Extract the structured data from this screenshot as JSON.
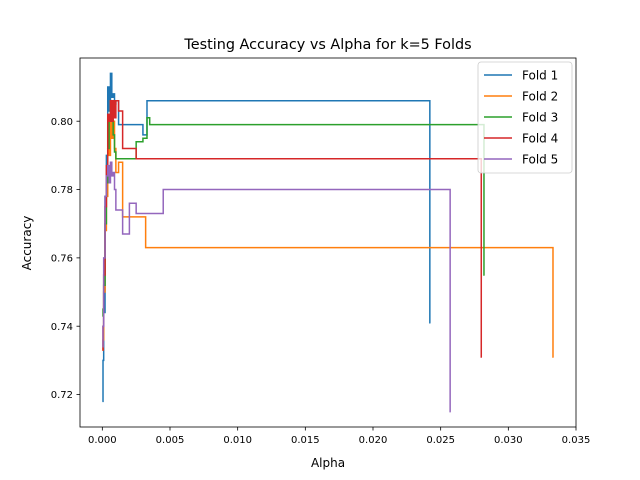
{
  "chart_data": {
    "type": "line",
    "title": "Testing Accuracy vs Alpha for k=5 Folds",
    "xlabel": "Alpha",
    "ylabel": "Accuracy",
    "xlim": [
      -0.00165,
      0.035
    ],
    "ylim": [
      0.7105,
      0.8185
    ],
    "x_ticks": [
      0.0,
      0.005,
      0.01,
      0.015,
      0.02,
      0.025,
      0.03,
      0.035
    ],
    "x_tick_labels": [
      "0.000",
      "0.005",
      "0.010",
      "0.015",
      "0.020",
      "0.025",
      "0.030",
      "0.035"
    ],
    "y_ticks": [
      0.72,
      0.74,
      0.76,
      0.78,
      0.8
    ],
    "y_tick_labels": [
      "0.72",
      "0.74",
      "0.76",
      "0.78",
      "0.80"
    ],
    "grid": false,
    "legend_position": "top-right",
    "drawstyle": "steps-post",
    "series": [
      {
        "name": "Fold 1",
        "color": "#1f77b4",
        "x": [
          0.0,
          5e-05,
          0.0001,
          0.0002,
          0.0003,
          0.0004,
          0.0005,
          0.0006,
          0.0007,
          0.0008,
          0.0009,
          0.001,
          0.0012,
          0.0015,
          0.002,
          0.0025,
          0.003,
          0.0033,
          0.0035,
          0.0242,
          0.02425
        ],
        "y": [
          0.718,
          0.73,
          0.744,
          0.778,
          0.79,
          0.81,
          0.803,
          0.814,
          0.807,
          0.808,
          0.805,
          0.806,
          0.799,
          0.799,
          0.799,
          0.799,
          0.796,
          0.806,
          0.806,
          0.741,
          0.741
        ]
      },
      {
        "name": "Fold 2",
        "color": "#ff7f0e",
        "x": [
          0.0,
          5e-05,
          0.0001,
          0.0002,
          0.0003,
          0.0004,
          0.0005,
          0.0006,
          0.0007,
          0.0008,
          0.0009,
          0.001,
          0.0012,
          0.0015,
          0.002,
          0.0025,
          0.003,
          0.0032,
          0.0333,
          0.03335
        ],
        "y": [
          0.733,
          0.736,
          0.75,
          0.768,
          0.778,
          0.801,
          0.79,
          0.806,
          0.795,
          0.8,
          0.792,
          0.785,
          0.788,
          0.772,
          0.772,
          0.772,
          0.772,
          0.763,
          0.731,
          0.731
        ]
      },
      {
        "name": "Fold 3",
        "color": "#2ca02c",
        "x": [
          0.0,
          5e-05,
          0.0001,
          0.0002,
          0.0003,
          0.0004,
          0.0005,
          0.0006,
          0.0007,
          0.0008,
          0.0009,
          0.001,
          0.0012,
          0.0015,
          0.002,
          0.0025,
          0.003,
          0.0033,
          0.0035,
          0.0282,
          0.02825
        ],
        "y": [
          0.743,
          0.745,
          0.752,
          0.77,
          0.782,
          0.792,
          0.8,
          0.803,
          0.802,
          0.796,
          0.791,
          0.789,
          0.789,
          0.789,
          0.789,
          0.794,
          0.795,
          0.801,
          0.799,
          0.755,
          0.755
        ]
      },
      {
        "name": "Fold 4",
        "color": "#d62728",
        "x": [
          0.0,
          5e-05,
          0.0001,
          0.0002,
          0.0003,
          0.0004,
          0.0005,
          0.0006,
          0.0007,
          0.0008,
          0.0009,
          0.001,
          0.0012,
          0.0015,
          0.002,
          0.0025,
          0.028,
          0.02805
        ],
        "y": [
          0.733,
          0.74,
          0.755,
          0.775,
          0.787,
          0.802,
          0.8,
          0.806,
          0.8,
          0.806,
          0.801,
          0.806,
          0.803,
          0.792,
          0.792,
          0.789,
          0.731,
          0.731
        ]
      },
      {
        "name": "Fold 5",
        "color": "#9467bd",
        "x": [
          0.0,
          5e-05,
          0.0001,
          0.0002,
          0.0003,
          0.0004,
          0.0005,
          0.0006,
          0.0007,
          0.0008,
          0.0009,
          0.001,
          0.0012,
          0.0015,
          0.002,
          0.0025,
          0.003,
          0.0045,
          0.0257,
          0.02575
        ],
        "y": [
          0.734,
          0.74,
          0.76,
          0.778,
          0.784,
          0.787,
          0.782,
          0.788,
          0.784,
          0.785,
          0.78,
          0.774,
          0.774,
          0.767,
          0.776,
          0.773,
          0.773,
          0.78,
          0.715,
          0.715
        ]
      }
    ]
  }
}
